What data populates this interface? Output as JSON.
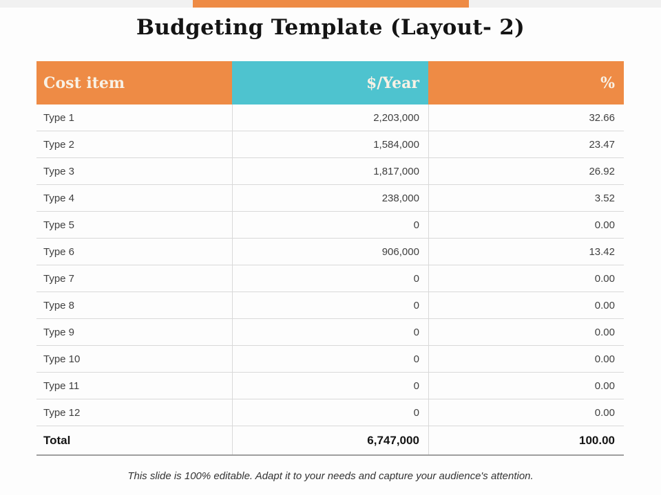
{
  "slide": {
    "title": "Budgeting Template (Layout- 2)",
    "footer": "This slide is 100% editable.  Adapt it to your needs and capture your audience's attention."
  },
  "colors": {
    "accent_orange": "#EE8B45",
    "accent_teal": "#4EC3CF",
    "header_text": "#F8F1E5",
    "row_border": "#D9D9D9",
    "total_border": "#9E9E9E"
  },
  "table": {
    "headers": [
      {
        "label": "Cost item"
      },
      {
        "label": "$/Year"
      },
      {
        "label": "%"
      }
    ],
    "rows": [
      {
        "item": "Type 1",
        "year": "2,203,000",
        "pct": "32.66"
      },
      {
        "item": "Type 2",
        "year": "1,584,000",
        "pct": "23.47"
      },
      {
        "item": "Type 3",
        "year": "1,817,000",
        "pct": "26.92"
      },
      {
        "item": "Type 4",
        "year": "238,000",
        "pct": "3.52"
      },
      {
        "item": "Type 5",
        "year": "0",
        "pct": "0.00"
      },
      {
        "item": "Type 6",
        "year": "906,000",
        "pct": "13.42"
      },
      {
        "item": "Type 7",
        "year": "0",
        "pct": "0.00"
      },
      {
        "item": "Type 8",
        "year": "0",
        "pct": "0.00"
      },
      {
        "item": "Type 9",
        "year": "0",
        "pct": "0.00"
      },
      {
        "item": "Type 10",
        "year": "0",
        "pct": "0.00"
      },
      {
        "item": "Type 11",
        "year": "0",
        "pct": "0.00"
      },
      {
        "item": "Type 12",
        "year": "0",
        "pct": "0.00"
      }
    ],
    "total": {
      "item": "Total",
      "year": "6,747,000",
      "pct": "100.00"
    }
  }
}
